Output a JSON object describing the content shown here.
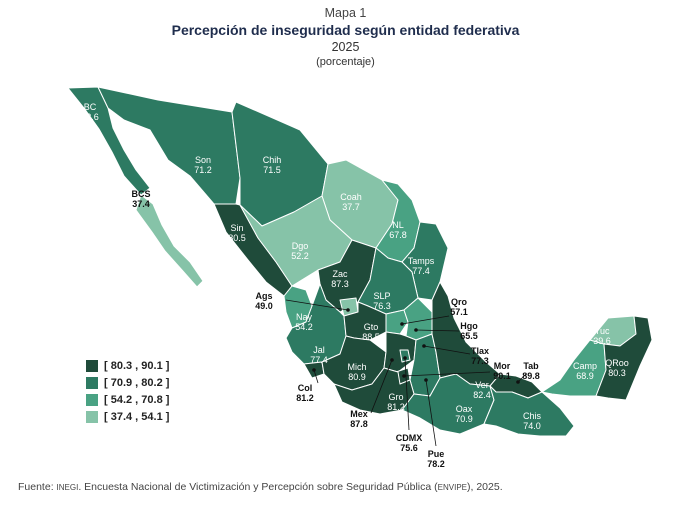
{
  "map_label": "Mapa 1",
  "title": "Percepción de inseguridad según entidad federativa",
  "year": "2025",
  "unit": "(porcentaje)",
  "legend": [
    {
      "label": "[ 80.3 , 90.1 ]",
      "color": "#1f4b3a"
    },
    {
      "label": "[ 70.9 , 80.2 ]",
      "color": "#2d7a62"
    },
    {
      "label": "[ 54.2 , 70.8 ]",
      "color": "#49a283"
    },
    {
      "label": "[ 37.4 , 54.1 ]",
      "color": "#86c3a8"
    }
  ],
  "states": [
    {
      "abbr": "BC",
      "value": "72.6"
    },
    {
      "abbr": "BCS",
      "value": "37.4"
    },
    {
      "abbr": "Son",
      "value": "71.2"
    },
    {
      "abbr": "Chih",
      "value": "71.5"
    },
    {
      "abbr": "Coah",
      "value": "37.7"
    },
    {
      "abbr": "NL",
      "value": "67.8"
    },
    {
      "abbr": "Tamps",
      "value": "77.4"
    },
    {
      "abbr": "Sin",
      "value": "80.5"
    },
    {
      "abbr": "Dgo",
      "value": "52.2"
    },
    {
      "abbr": "Zac",
      "value": "87.3"
    },
    {
      "abbr": "SLP",
      "value": "76.3"
    },
    {
      "abbr": "Ags",
      "value": "49.0"
    },
    {
      "abbr": "Nay",
      "value": "54.2"
    },
    {
      "abbr": "Qro",
      "value": "57.1"
    },
    {
      "abbr": "Gto",
      "value": "88.5"
    },
    {
      "abbr": "Hgo",
      "value": "65.5"
    },
    {
      "abbr": "Jal",
      "value": "77.4"
    },
    {
      "abbr": "Tlax",
      "value": "77.3"
    },
    {
      "abbr": "Mich",
      "value": "80.9"
    },
    {
      "abbr": "Mor",
      "value": "90.1"
    },
    {
      "abbr": "Tab",
      "value": "89.8"
    },
    {
      "abbr": "Col",
      "value": "81.2"
    },
    {
      "abbr": "Gro",
      "value": "81.2"
    },
    {
      "abbr": "Ver",
      "value": "82.4"
    },
    {
      "abbr": "Mex",
      "value": "87.8"
    },
    {
      "abbr": "Oax",
      "value": "70.9"
    },
    {
      "abbr": "CDMX",
      "value": "75.6"
    },
    {
      "abbr": "Pue",
      "value": "78.2"
    },
    {
      "abbr": "Chis",
      "value": "74.0"
    },
    {
      "abbr": "Camp",
      "value": "68.9"
    },
    {
      "abbr": "Yuc",
      "value": "39.6"
    },
    {
      "abbr": "QRoo",
      "value": "80.3"
    }
  ],
  "source": {
    "prefix": "Fuente:",
    "org": "INEGI",
    "text": ". Encuesta Nacional de Victimización y Percepción sobre Seguridad Pública (",
    "acr": "ENVIPE",
    "suffix": "), 2025."
  }
}
